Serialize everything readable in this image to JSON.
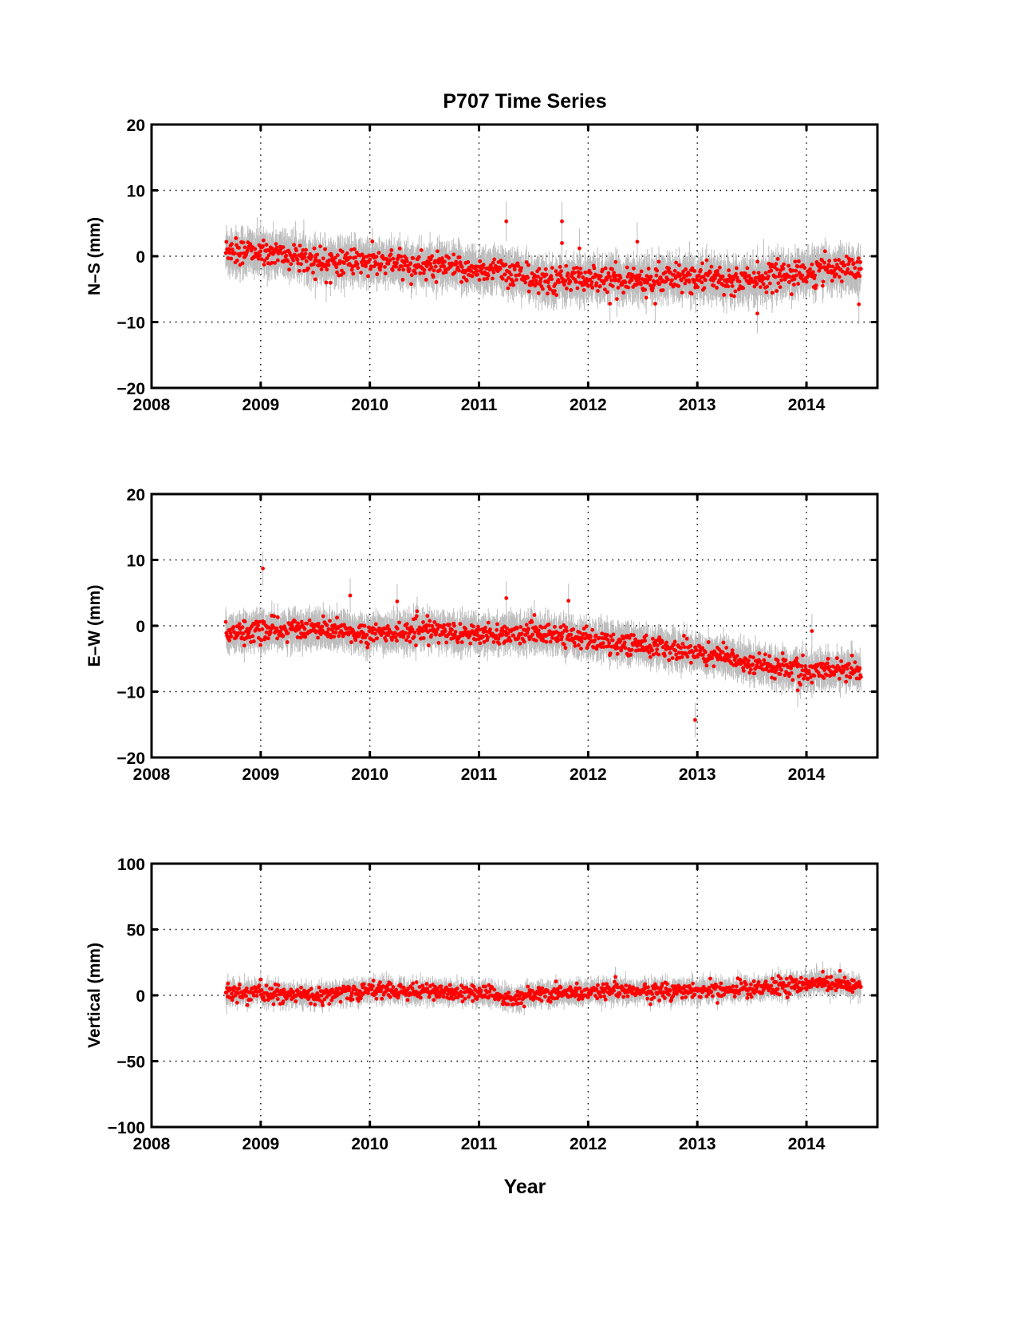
{
  "figure": {
    "title": "P707 Time Series",
    "xlabel": "Year"
  },
  "colors": {
    "point": "#ff0000",
    "error_bar": "#bdbdbd",
    "axes": "#000000",
    "grid": "#000000"
  },
  "chart_data": [
    {
      "type": "scatter",
      "name": "north-south",
      "ylabel": "N–S (mm)",
      "xlim": [
        2008,
        2014.65
      ],
      "ylim": [
        -20,
        20
      ],
      "xticks": [
        "2008",
        "2009",
        "2010",
        "2011",
        "2012",
        "2013",
        "2014"
      ],
      "yticks": [
        "−20",
        "−10",
        "0",
        "10",
        "20"
      ],
      "ytick_values": [
        -20,
        -10,
        0,
        10,
        20
      ],
      "grid": true,
      "error_bars": true,
      "x_range": [
        2008.68,
        2014.5
      ],
      "trend": [
        [
          2008.68,
          0.8
        ],
        [
          2009.2,
          0.3
        ],
        [
          2009.5,
          -0.5
        ],
        [
          2010.0,
          -1.0
        ],
        [
          2010.5,
          -1.5
        ],
        [
          2011.0,
          -2.0
        ],
        [
          2011.35,
          -2.5
        ],
        [
          2011.5,
          -3.8
        ],
        [
          2012.0,
          -3.5
        ],
        [
          2012.5,
          -3.5
        ],
        [
          2013.0,
          -3.3
        ],
        [
          2013.5,
          -3.5
        ],
        [
          2014.0,
          -2.5
        ],
        [
          2014.3,
          -1.8
        ],
        [
          2014.5,
          -2.5
        ]
      ],
      "scatter_sd": 1.0,
      "error_sd": 2.3,
      "outliers": [
        [
          2011.25,
          5.3
        ],
        [
          2011.76,
          5.3
        ],
        [
          2011.76,
          2.0
        ],
        [
          2011.92,
          1.2
        ],
        [
          2012.2,
          -7.2
        ],
        [
          2012.45,
          2.2
        ],
        [
          2013.55,
          -8.7
        ],
        [
          2014.48,
          -7.3
        ],
        [
          2009.5,
          -3.5
        ],
        [
          2009.6,
          -4.0
        ]
      ]
    },
    {
      "type": "scatter",
      "name": "east-west",
      "ylabel": "E–W (mm)",
      "xlim": [
        2008,
        2014.65
      ],
      "ylim": [
        -20,
        20
      ],
      "xticks": [
        "2008",
        "2009",
        "2010",
        "2011",
        "2012",
        "2013",
        "2014"
      ],
      "yticks": [
        "−20",
        "−10",
        "0",
        "10",
        "20"
      ],
      "ytick_values": [
        -20,
        -10,
        0,
        10,
        20
      ],
      "grid": true,
      "error_bars": true,
      "x_range": [
        2008.68,
        2014.5
      ],
      "trend": [
        [
          2008.68,
          -1.0
        ],
        [
          2009.5,
          -0.5
        ],
        [
          2010.0,
          -1.2
        ],
        [
          2010.5,
          -0.8
        ],
        [
          2011.0,
          -1.2
        ],
        [
          2011.5,
          -1.0
        ],
        [
          2012.0,
          -2.0
        ],
        [
          2012.5,
          -3.0
        ],
        [
          2013.0,
          -4.0
        ],
        [
          2013.5,
          -5.5
        ],
        [
          2014.0,
          -7.0
        ],
        [
          2014.5,
          -6.5
        ]
      ],
      "scatter_sd": 0.8,
      "error_sd": 2.0,
      "outliers": [
        [
          2009.02,
          8.7
        ],
        [
          2009.82,
          4.6
        ],
        [
          2010.25,
          3.7
        ],
        [
          2011.25,
          4.2
        ],
        [
          2011.82,
          3.8
        ],
        [
          2012.98,
          -14.3
        ],
        [
          2013.92,
          -9.8
        ],
        [
          2014.05,
          -0.8
        ],
        [
          2008.85,
          -3.0
        ]
      ]
    },
    {
      "type": "scatter",
      "name": "vertical",
      "ylabel": "Vertical (mm)",
      "xlim": [
        2008,
        2014.65
      ],
      "ylim": [
        -100,
        100
      ],
      "xticks": [
        "2008",
        "2009",
        "2010",
        "2011",
        "2012",
        "2013",
        "2014"
      ],
      "yticks": [
        "−100",
        "−50",
        "0",
        "50",
        "100"
      ],
      "ytick_values": [
        -100,
        -50,
        0,
        50,
        100
      ],
      "grid": true,
      "error_bars": true,
      "x_range": [
        2008.68,
        2014.5
      ],
      "trend": [
        [
          2008.68,
          1.0
        ],
        [
          2009.0,
          2.0
        ],
        [
          2009.5,
          -1.0
        ],
        [
          2010.0,
          4.0
        ],
        [
          2010.5,
          3.0
        ],
        [
          2011.0,
          2.0
        ],
        [
          2011.35,
          -3.0
        ],
        [
          2011.5,
          1.0
        ],
        [
          2012.0,
          2.0
        ],
        [
          2012.5,
          3.0
        ],
        [
          2013.0,
          4.0
        ],
        [
          2013.5,
          5.0
        ],
        [
          2013.9,
          8.0
        ],
        [
          2014.1,
          10.0
        ],
        [
          2014.5,
          6.0
        ]
      ],
      "scatter_sd": 3.0,
      "error_sd": 6.0,
      "outliers": [
        [
          2008.7,
          9.0
        ],
        [
          2009.0,
          12.0
        ],
        [
          2012.25,
          14.0
        ],
        [
          2014.15,
          18.0
        ]
      ]
    }
  ]
}
